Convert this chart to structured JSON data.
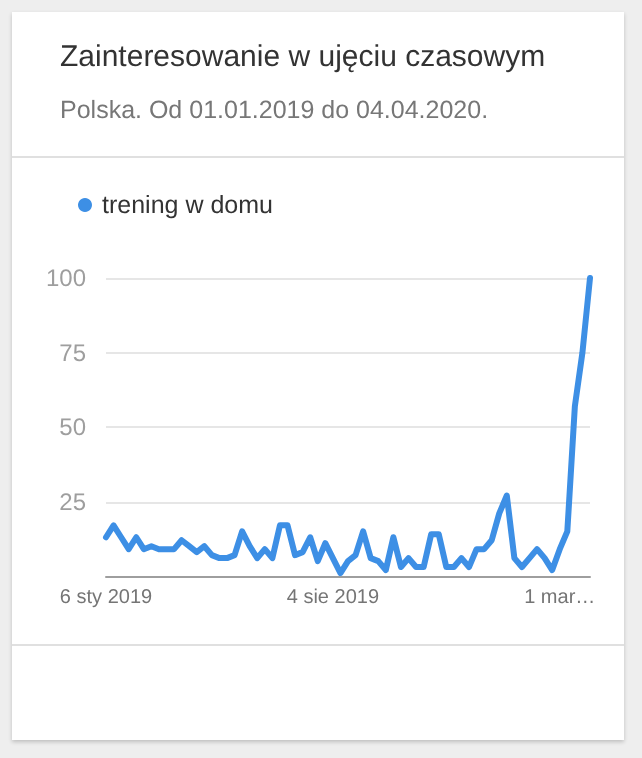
{
  "chart_data": {
    "type": "line",
    "title": "Zainteresowanie w ujęciu czasowym",
    "subtitle": "Polska. Od 01.01.2019 do 04.04.2020.",
    "categories": [
      "6 sty 2019",
      null,
      null,
      null,
      null,
      null,
      null,
      null,
      null,
      null,
      null,
      null,
      null,
      null,
      null,
      null,
      null,
      null,
      null,
      null,
      null,
      null,
      null,
      null,
      null,
      null,
      null,
      null,
      null,
      null,
      "4 sie 2019",
      null,
      null,
      null,
      null,
      null,
      null,
      null,
      null,
      null,
      null,
      null,
      null,
      null,
      null,
      null,
      null,
      null,
      null,
      null,
      null,
      null,
      null,
      null,
      null,
      null,
      null,
      null,
      null,
      null,
      "1 mar…",
      null,
      null,
      null,
      null
    ],
    "series": [
      {
        "name": "trening w domu",
        "color": "#3d8fe5",
        "values": [
          13,
          17,
          13,
          9,
          13,
          9,
          10,
          9,
          9,
          9,
          12,
          10,
          8,
          10,
          7,
          6,
          6,
          7,
          15,
          10,
          6,
          9,
          6,
          17,
          17,
          7,
          8,
          13,
          5,
          11,
          6,
          1,
          5,
          7,
          15,
          6,
          5,
          2,
          13,
          3,
          6,
          3,
          3,
          14,
          14,
          3,
          3,
          6,
          3,
          9,
          9,
          12,
          21,
          27,
          6,
          3,
          6,
          9,
          6,
          2,
          9,
          15,
          57,
          75,
          100
        ]
      }
    ],
    "ylim": [
      0,
      100
    ],
    "yticks": [
      25,
      50,
      75,
      100
    ],
    "grid": "y",
    "legend": "top left",
    "marker": "none",
    "line_style": "solid"
  }
}
